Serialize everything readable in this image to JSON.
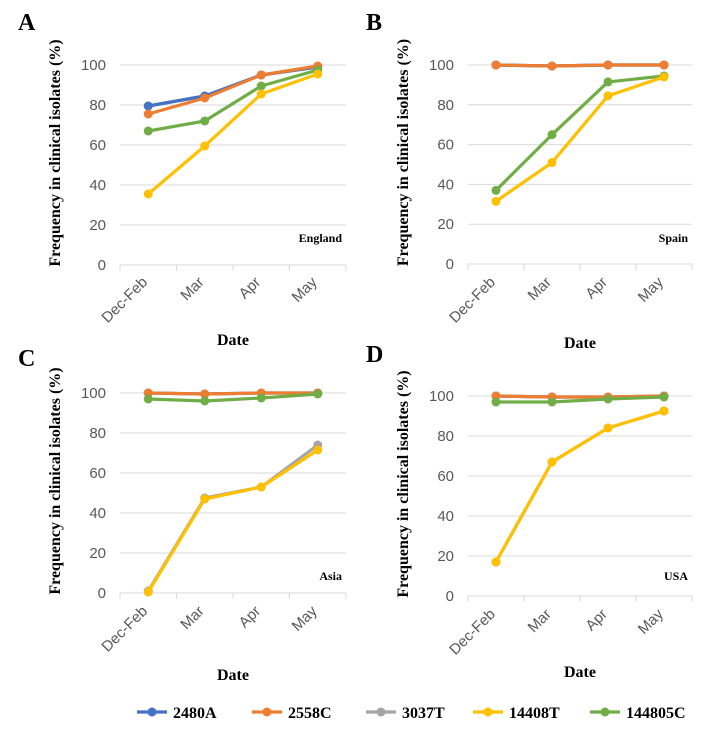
{
  "legend": [
    {
      "name": "2480A",
      "color": "#4472C4"
    },
    {
      "name": "2558C",
      "color": "#ED7D31"
    },
    {
      "name": "3037T",
      "color": "#A5A5A5"
    },
    {
      "name": "14408T",
      "color": "#FFC000"
    },
    {
      "name": "144805C",
      "color": "#70AD47"
    }
  ],
  "chart_data": [
    {
      "panel": "A",
      "type": "line",
      "annotation": "England",
      "xlabel": "Date",
      "ylabel": "Frequency in clinical isolates (%)",
      "categories": [
        "Dec-Feb",
        "Mar",
        "Apr",
        "May"
      ],
      "ylim": [
        0,
        100
      ],
      "yticks": [
        0,
        20,
        40,
        60,
        80,
        100
      ],
      "series": [
        {
          "name": "2480A",
          "values": [
            79.5,
            84.5,
            95,
            99
          ]
        },
        {
          "name": "3037T",
          "values": [
            79.5,
            84.5,
            95,
            99
          ]
        },
        {
          "name": "2558C",
          "values": [
            75.5,
            83.5,
            95,
            99.5
          ]
        },
        {
          "name": "14408T",
          "values": [
            35.5,
            59.5,
            85.5,
            95.5
          ]
        },
        {
          "name": "144805C",
          "values": [
            67,
            72,
            89.5,
            97.5
          ]
        }
      ]
    },
    {
      "panel": "B",
      "type": "line",
      "annotation": "Spain",
      "xlabel": "Date",
      "ylabel": "Frequency in clinical isolates (%)",
      "categories": [
        "Dec-Feb",
        "Mar",
        "Apr",
        "May"
      ],
      "ylim": [
        0,
        100
      ],
      "yticks": [
        0,
        20,
        40,
        60,
        80,
        100
      ],
      "series": [
        {
          "name": "2480A",
          "values": [
            100,
            99.5,
            100,
            100
          ]
        },
        {
          "name": "3037T",
          "values": [
            100,
            99.5,
            100,
            100
          ]
        },
        {
          "name": "2558C",
          "values": [
            100,
            99.5,
            100,
            100
          ]
        },
        {
          "name": "14408T",
          "values": [
            31.5,
            51,
            84.5,
            94
          ]
        },
        {
          "name": "144805C",
          "values": [
            37,
            65,
            91.5,
            94.5
          ]
        }
      ]
    },
    {
      "panel": "C",
      "type": "line",
      "annotation": "Asia",
      "xlabel": "Date",
      "ylabel": "Frequency in clinical isolates (%)",
      "categories": [
        "Dec-Feb",
        "Mar",
        "Apr",
        "May"
      ],
      "ylim": [
        0,
        100
      ],
      "yticks": [
        0,
        20,
        40,
        60,
        80,
        100
      ],
      "series": [
        {
          "name": "2480A",
          "values": [
            100,
            99.5,
            100,
            100
          ]
        },
        {
          "name": "2558C",
          "values": [
            100,
            99.5,
            100,
            100
          ]
        },
        {
          "name": "3037T",
          "values": [
            1,
            47.5,
            53,
            74
          ]
        },
        {
          "name": "14408T",
          "values": [
            0.5,
            47,
            53,
            71.5
          ]
        },
        {
          "name": "144805C",
          "values": [
            97,
            96,
            97.5,
            99.5
          ]
        }
      ]
    },
    {
      "panel": "D",
      "type": "line",
      "annotation": "USA",
      "xlabel": "Date",
      "ylabel": "Frequency in clinical isolates (%)",
      "categories": [
        "Dec-Feb",
        "Mar",
        "Apr",
        "May"
      ],
      "ylim": [
        0,
        100
      ],
      "yticks": [
        0,
        20,
        40,
        60,
        80,
        100
      ],
      "series": [
        {
          "name": "2480A",
          "values": [
            100,
            99.5,
            99.5,
            100
          ]
        },
        {
          "name": "2558C",
          "values": [
            100,
            99.5,
            99.5,
            100
          ]
        },
        {
          "name": "3037T",
          "values": [
            17,
            67,
            84,
            92.5
          ]
        },
        {
          "name": "14408T",
          "values": [
            17,
            67,
            84,
            92.5
          ]
        },
        {
          "name": "144805C",
          "values": [
            97,
            97,
            98.5,
            99.5
          ]
        }
      ]
    }
  ]
}
